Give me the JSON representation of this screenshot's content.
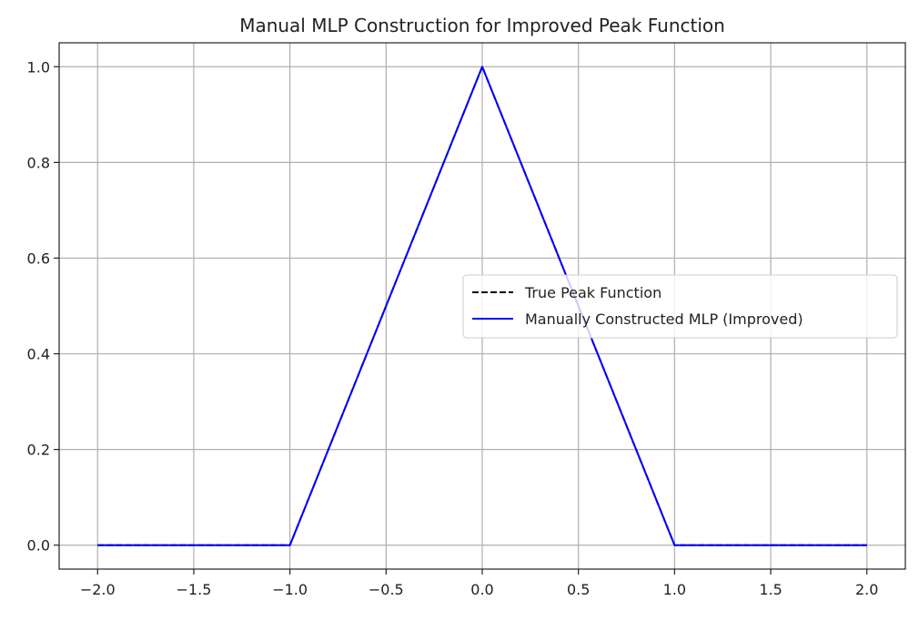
{
  "chart_data": {
    "type": "line",
    "title": "Manual MLP Construction for Improved Peak Function",
    "xlabel": "",
    "ylabel": "",
    "xlim": [
      -2.2,
      2.2
    ],
    "ylim": [
      -0.05,
      1.05
    ],
    "xticks": [
      -2.0,
      -1.5,
      -1.0,
      -0.5,
      0.0,
      0.5,
      1.0,
      1.5,
      2.0
    ],
    "xtick_labels": [
      "−2.0",
      "−1.5",
      "−1.0",
      "−0.5",
      "0.0",
      "0.5",
      "1.0",
      "1.5",
      "2.0"
    ],
    "yticks": [
      0.0,
      0.2,
      0.4,
      0.6,
      0.8,
      1.0
    ],
    "ytick_labels": [
      "0.0",
      "0.2",
      "0.4",
      "0.6",
      "0.8",
      "1.0"
    ],
    "grid": true,
    "legend_position": "center-right",
    "series": [
      {
        "name": "True Peak Function",
        "style": "dashed",
        "color": "#000000",
        "x": [
          -2.0,
          -1.0,
          0.0,
          1.0,
          2.0
        ],
        "y": [
          0.0,
          0.0,
          1.0,
          0.0,
          0.0
        ]
      },
      {
        "name": "Manually Constructed MLP (Improved)",
        "style": "solid",
        "color": "#0000ff",
        "x": [
          -2.0,
          -1.0,
          0.0,
          1.0,
          2.0
        ],
        "y": [
          0.0,
          0.0,
          1.0,
          0.0,
          0.0
        ]
      }
    ]
  }
}
